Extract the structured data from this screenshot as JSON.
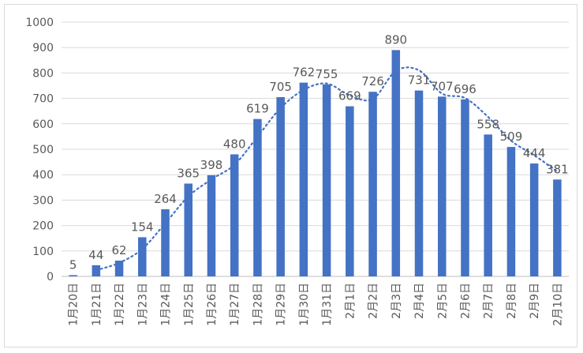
{
  "chart_data": {
    "type": "bar",
    "title": "",
    "xlabel": "",
    "ylabel": "",
    "ylim": [
      0,
      1000
    ],
    "y_ticks": [
      0,
      100,
      200,
      300,
      400,
      500,
      600,
      700,
      800,
      900,
      1000
    ],
    "grid": true,
    "legend": "none",
    "categories": [
      "1月20日",
      "1月21日",
      "1月22日",
      "1月23日",
      "1月24日",
      "1月25日",
      "1月26日",
      "1月27日",
      "1月28日",
      "1月29日",
      "1月30日",
      "1月31日",
      "2月1日",
      "2月2日",
      "2月3日",
      "2月4日",
      "2月5日",
      "2月6日",
      "2月7日",
      "2月8日",
      "2月9日",
      "2月10日"
    ],
    "series": [
      {
        "values": [
          5,
          44,
          62,
          154,
          264,
          365,
          398,
          480,
          619,
          705,
          762,
          755,
          669,
          726,
          890,
          731,
          707,
          696,
          558,
          509,
          444,
          381
        ],
        "color": "#4472c4",
        "data_labels": true
      }
    ],
    "trendline": {
      "type": "moving-average",
      "period": 2,
      "style": "dotted",
      "color": "#4472c4"
    }
  }
}
